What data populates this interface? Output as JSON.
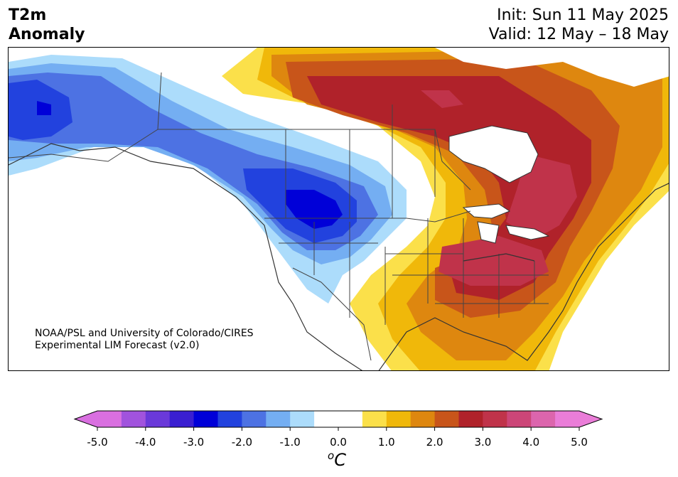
{
  "title": {
    "left_line1": "T2m",
    "left_line2": "Anomaly",
    "right_line1": "Init: Sun 11 May 2025",
    "right_line2": "Valid: 12 May – 18 May"
  },
  "credit": {
    "line1": "NOAA/PSL and University of Colorado/CIRES",
    "line2": "Experimental LIM Forecast (v2.0)"
  },
  "colorbar": {
    "unit_super": "o",
    "unit_main": "C",
    "ticks": [
      "-5.0",
      "-4.0",
      "-3.0",
      "-2.0",
      "-1.0",
      "0.0",
      "1.0",
      "2.0",
      "3.0",
      "4.0",
      "5.0"
    ],
    "min": -5.0,
    "max": 5.0,
    "step": 0.5,
    "extend": "both",
    "colors": [
      "#d96fe0",
      "#a153dd",
      "#6a39d9",
      "#3a1fd1",
      "#0000d8",
      "#2242de",
      "#4d72e3",
      "#74aef2",
      "#acdcfb",
      "#ffffff",
      "#ffffff",
      "#fbe04a",
      "#f0b80a",
      "#de870f",
      "#c8551a",
      "#b0222a",
      "#c0334a",
      "#cc4678",
      "#dc65ad",
      "#ea7dd8"
    ],
    "under_color": "#d96fe0",
    "over_color": "#ea7dd8"
  },
  "map": {
    "region": "North America",
    "field": "2m temperature anomaly",
    "cold_anomaly_area": "Alaska, western Canada and US Northwest",
    "warm_anomaly_area": "Hudson Bay, Quebec, Ohio Valley and Mid-Atlantic"
  }
}
